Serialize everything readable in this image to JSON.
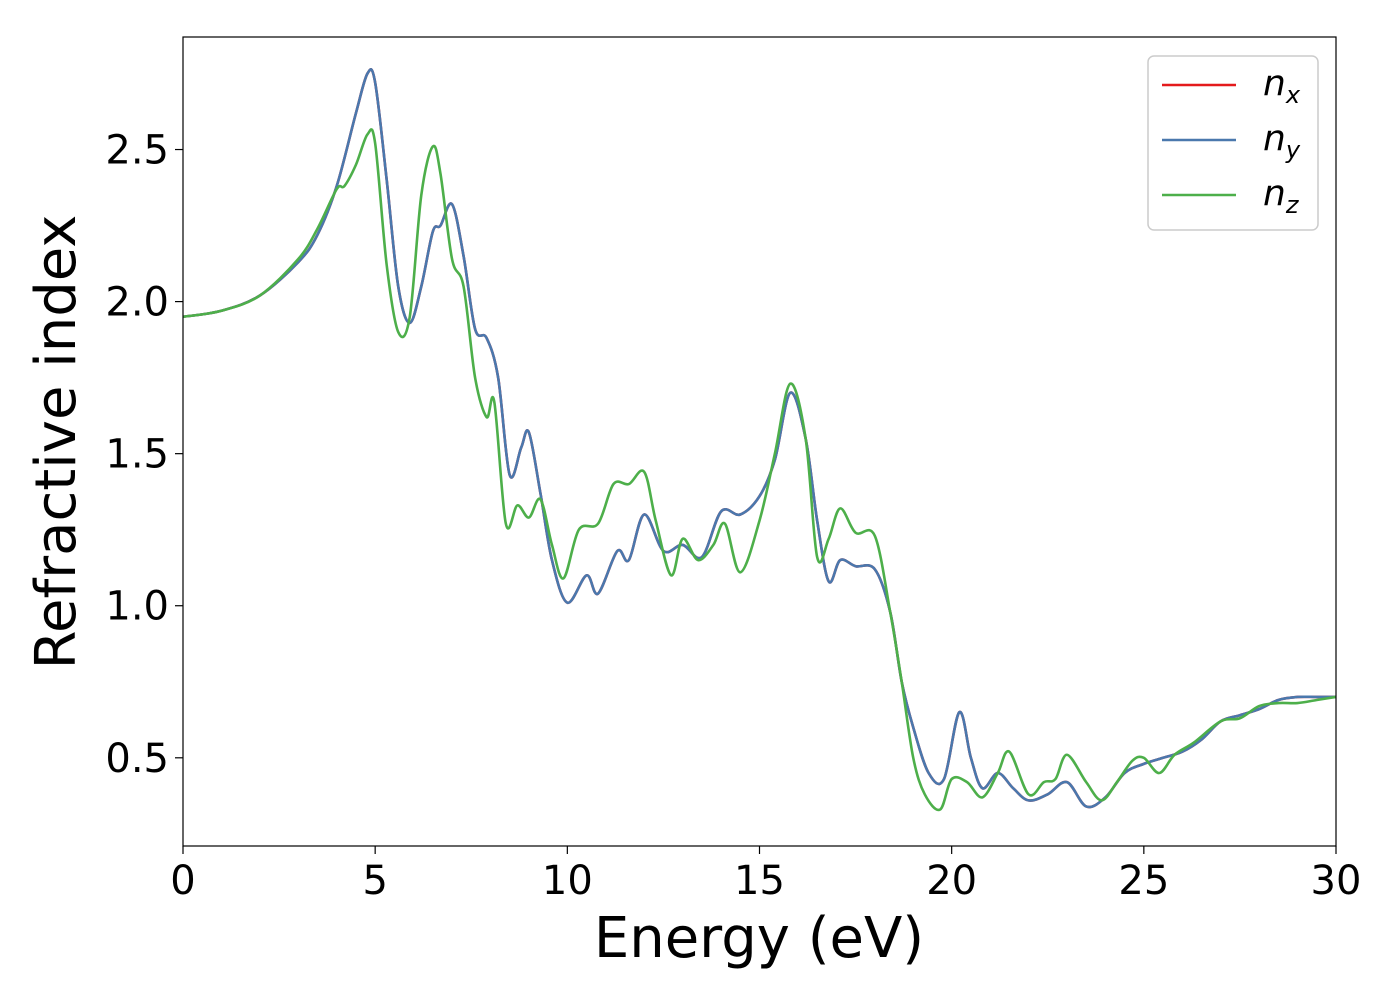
{
  "chart_data": {
    "type": "line",
    "xlabel": "Energy (eV)",
    "ylabel": "Refractive index",
    "xlim": [
      0,
      30
    ],
    "ylim": [
      0.21,
      2.87
    ],
    "xticks": [
      0,
      5,
      10,
      15,
      20,
      25,
      30
    ],
    "xtick_labels": [
      "0",
      "5",
      "10",
      "15",
      "20",
      "25",
      "30"
    ],
    "yticks": [
      0.5,
      1.0,
      1.5,
      2.0,
      2.5
    ],
    "ytick_labels": [
      "0.5",
      "1.0",
      "1.5",
      "2.0",
      "2.5"
    ],
    "grid": false,
    "legend": {
      "position": "top-right",
      "entries": [
        {
          "base": "n",
          "sub": "x"
        },
        {
          "base": "n",
          "sub": "y"
        },
        {
          "base": "n",
          "sub": "z"
        }
      ]
    },
    "series": [
      {
        "name": "n_x",
        "color": "#e41a1c",
        "x": [
          0,
          1,
          2,
          3,
          3.5,
          4,
          4.5,
          4.8,
          5.0,
          5.3,
          5.6,
          5.9,
          6.2,
          6.5,
          6.7,
          7.0,
          7.3,
          7.6,
          7.9,
          8.2,
          8.5,
          8.8,
          9.0,
          9.3,
          9.6,
          10.0,
          10.5,
          10.8,
          11.3,
          11.6,
          12.0,
          12.5,
          13.0,
          13.5,
          14.0,
          14.5,
          15.0,
          15.4,
          15.8,
          16.2,
          16.5,
          16.8,
          17.1,
          17.5,
          18.0,
          18.4,
          18.7,
          19.0,
          19.4,
          19.8,
          20.2,
          20.5,
          20.8,
          21.2,
          21.6,
          22.0,
          22.5,
          23.0,
          23.5,
          24.0,
          24.5,
          25.0,
          25.5,
          26.0,
          26.5,
          27.0,
          27.5,
          28.0,
          28.5,
          29.0,
          29.5,
          30.0
        ],
        "y": [
          1.95,
          1.97,
          2.02,
          2.13,
          2.22,
          2.38,
          2.62,
          2.75,
          2.72,
          2.4,
          2.05,
          1.93,
          2.05,
          2.23,
          2.25,
          2.32,
          2.15,
          1.91,
          1.88,
          1.75,
          1.43,
          1.52,
          1.57,
          1.37,
          1.15,
          1.01,
          1.1,
          1.04,
          1.18,
          1.15,
          1.3,
          1.18,
          1.2,
          1.16,
          1.31,
          1.3,
          1.36,
          1.48,
          1.7,
          1.55,
          1.28,
          1.08,
          1.15,
          1.13,
          1.12,
          0.98,
          0.75,
          0.6,
          0.45,
          0.43,
          0.65,
          0.5,
          0.4,
          0.45,
          0.4,
          0.36,
          0.38,
          0.42,
          0.34,
          0.37,
          0.45,
          0.48,
          0.5,
          0.52,
          0.56,
          0.62,
          0.64,
          0.66,
          0.69,
          0.7,
          0.7,
          0.7
        ]
      },
      {
        "name": "n_y",
        "color": "#4a78ad",
        "x": [
          0,
          1,
          2,
          3,
          3.5,
          4,
          4.5,
          4.8,
          5.0,
          5.3,
          5.6,
          5.9,
          6.2,
          6.5,
          6.7,
          7.0,
          7.3,
          7.6,
          7.9,
          8.2,
          8.5,
          8.8,
          9.0,
          9.3,
          9.6,
          10.0,
          10.5,
          10.8,
          11.3,
          11.6,
          12.0,
          12.5,
          13.0,
          13.5,
          14.0,
          14.5,
          15.0,
          15.4,
          15.8,
          16.2,
          16.5,
          16.8,
          17.1,
          17.5,
          18.0,
          18.4,
          18.7,
          19.0,
          19.4,
          19.8,
          20.2,
          20.5,
          20.8,
          21.2,
          21.6,
          22.0,
          22.5,
          23.0,
          23.5,
          24.0,
          24.5,
          25.0,
          25.5,
          26.0,
          26.5,
          27.0,
          27.5,
          28.0,
          28.5,
          29.0,
          29.5,
          30.0
        ],
        "y": [
          1.95,
          1.97,
          2.02,
          2.13,
          2.22,
          2.38,
          2.62,
          2.75,
          2.72,
          2.4,
          2.05,
          1.93,
          2.05,
          2.23,
          2.25,
          2.32,
          2.15,
          1.91,
          1.88,
          1.75,
          1.43,
          1.52,
          1.57,
          1.37,
          1.15,
          1.01,
          1.1,
          1.04,
          1.18,
          1.15,
          1.3,
          1.18,
          1.2,
          1.16,
          1.31,
          1.3,
          1.36,
          1.48,
          1.7,
          1.55,
          1.28,
          1.08,
          1.15,
          1.13,
          1.12,
          0.98,
          0.75,
          0.6,
          0.45,
          0.43,
          0.65,
          0.5,
          0.4,
          0.45,
          0.4,
          0.36,
          0.38,
          0.42,
          0.34,
          0.37,
          0.45,
          0.48,
          0.5,
          0.52,
          0.56,
          0.62,
          0.64,
          0.66,
          0.69,
          0.7,
          0.7,
          0.7
        ]
      },
      {
        "name": "n_z",
        "color": "#4daf4a",
        "x": [
          0,
          1,
          2,
          3,
          3.5,
          4.0,
          4.2,
          4.5,
          4.8,
          5.0,
          5.3,
          5.6,
          5.9,
          6.2,
          6.5,
          6.7,
          7.0,
          7.3,
          7.6,
          7.9,
          8.1,
          8.4,
          8.7,
          9.0,
          9.3,
          9.6,
          9.9,
          10.3,
          10.8,
          11.2,
          11.6,
          12.0,
          12.3,
          12.7,
          13.0,
          13.4,
          13.8,
          14.1,
          14.5,
          15.0,
          15.4,
          15.8,
          16.2,
          16.5,
          16.8,
          17.1,
          17.5,
          18.0,
          18.4,
          18.7,
          19.0,
          19.3,
          19.7,
          20.0,
          20.4,
          20.8,
          21.2,
          21.5,
          22.0,
          22.4,
          22.7,
          23.0,
          23.5,
          23.9,
          24.3,
          24.7,
          25.0,
          25.4,
          25.8,
          26.3,
          27.0,
          27.5,
          28.0,
          28.5,
          29.0,
          29.5,
          30.0
        ],
        "y": [
          1.95,
          1.97,
          2.02,
          2.14,
          2.24,
          2.37,
          2.38,
          2.45,
          2.55,
          2.52,
          2.12,
          1.9,
          1.95,
          2.35,
          2.51,
          2.42,
          2.14,
          2.05,
          1.75,
          1.62,
          1.67,
          1.27,
          1.33,
          1.29,
          1.35,
          1.2,
          1.09,
          1.25,
          1.27,
          1.4,
          1.4,
          1.44,
          1.28,
          1.1,
          1.22,
          1.15,
          1.2,
          1.27,
          1.11,
          1.28,
          1.5,
          1.73,
          1.55,
          1.16,
          1.22,
          1.32,
          1.24,
          1.23,
          0.98,
          0.75,
          0.5,
          0.38,
          0.33,
          0.43,
          0.42,
          0.37,
          0.45,
          0.52,
          0.38,
          0.42,
          0.43,
          0.51,
          0.42,
          0.36,
          0.42,
          0.49,
          0.5,
          0.45,
          0.51,
          0.55,
          0.62,
          0.63,
          0.67,
          0.68,
          0.68,
          0.69,
          0.7
        ]
      }
    ]
  }
}
